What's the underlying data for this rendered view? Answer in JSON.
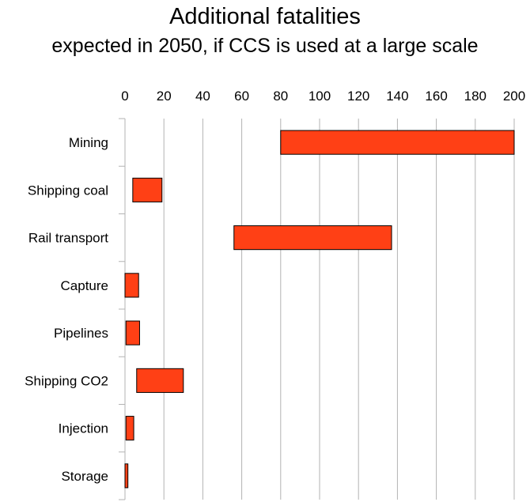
{
  "chart_data": {
    "type": "bar",
    "orientation": "horizontal",
    "stacked_range": true,
    "title": "Additional fatalities",
    "subtitle": "expected in 2050, if CCS is used at a large scale",
    "xlabel": "",
    "ylabel": "",
    "xlim": [
      0,
      200
    ],
    "x_ticks": [
      "0",
      "20",
      "40",
      "60",
      "80",
      "100",
      "120",
      "140",
      "160",
      "180",
      "200"
    ],
    "x_axis_position": "top",
    "grid": true,
    "legend": "none",
    "bar_color": "#ff4015",
    "categories": [
      "Mining",
      "Shipping coal",
      "Rail transport",
      "Capture",
      "Pipelines",
      "Shipping CO2",
      "Injection",
      "Storage"
    ],
    "ranges": [
      [
        80,
        200
      ],
      [
        4,
        19
      ],
      [
        56,
        137
      ],
      [
        0,
        7
      ],
      [
        0.5,
        7.5
      ],
      [
        6,
        30
      ],
      [
        0.5,
        4.5
      ],
      [
        0,
        1.5
      ]
    ]
  }
}
